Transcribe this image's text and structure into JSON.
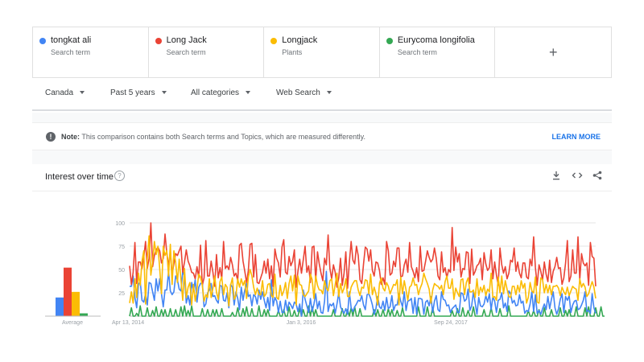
{
  "terms": [
    {
      "name": "tongkat ali",
      "type": "Search term",
      "color": "#4285f4"
    },
    {
      "name": "Long Jack",
      "type": "Search term",
      "color": "#ea4335"
    },
    {
      "name": "Longjack",
      "type": "Plants",
      "color": "#fbbc04"
    },
    {
      "name": "Eurycoma longifolia",
      "type": "Search term",
      "color": "#34a853"
    }
  ],
  "add_label": "+",
  "filters": {
    "region": "Canada",
    "time": "Past 5 years",
    "category": "All categories",
    "property": "Web Search"
  },
  "note": {
    "label": "Note:",
    "text": "This comparison contains both Search terms and Topics, which are measured differently.",
    "action": "LEARN MORE"
  },
  "card": {
    "title": "Interest over time",
    "help": "?",
    "tools": [
      "download-icon",
      "embed-icon",
      "share-icon"
    ]
  },
  "chart_data": {
    "type": "line",
    "ylim": [
      0,
      100
    ],
    "yticks": [
      25,
      50,
      75,
      100
    ],
    "xtick_labels": [
      "Apr 13, 2014",
      "Jan 3, 2016",
      "Sep 24, 2017"
    ],
    "averages": {
      "label": "Average",
      "values": [
        {
          "name": "tongkat ali",
          "value": 20
        },
        {
          "name": "Long Jack",
          "value": 52
        },
        {
          "name": "Longjack",
          "value": 26
        },
        {
          "name": "Eurycoma longifolia",
          "value": 3
        }
      ]
    },
    "series": [
      {
        "name": "tongkat ali",
        "values": [
          32,
          32,
          43,
          20,
          9,
          34,
          37,
          17,
          15,
          24,
          12,
          36,
          35,
          26,
          17,
          40,
          27,
          40,
          24,
          10,
          28,
          28,
          48,
          27,
          23,
          26,
          43,
          39,
          29,
          27,
          48,
          43,
          14,
          22,
          12,
          36,
          27,
          39,
          15,
          31,
          35,
          36,
          10,
          13,
          25,
          28,
          35,
          21,
          22,
          17,
          14,
          33,
          32,
          17,
          16,
          25,
          9,
          34,
          31,
          12,
          26,
          19,
          7,
          31,
          17,
          28,
          35,
          21,
          23,
          11,
          23,
          21,
          13,
          28,
          18,
          26,
          17,
          9,
          20,
          6,
          39,
          11,
          20,
          16,
          4,
          16,
          4,
          4,
          17,
          6,
          15,
          12,
          8,
          15,
          13,
          5,
          13,
          0,
          28,
          18,
          11,
          4,
          19,
          5,
          13,
          24,
          8,
          16,
          4,
          3,
          16,
          48,
          5,
          13,
          11,
          14,
          3,
          13,
          25,
          10,
          6,
          3,
          8,
          2,
          26,
          9,
          5,
          10,
          13,
          17,
          16,
          22,
          12,
          7,
          23,
          24,
          19,
          12,
          2,
          8,
          21,
          10,
          8,
          16,
          6,
          20,
          8,
          10,
          22,
          6,
          12,
          12,
          24,
          16,
          10,
          26,
          6,
          16,
          17,
          19,
          3,
          20,
          2,
          19,
          19,
          18,
          2,
          15,
          17,
          11,
          21,
          4,
          16,
          22,
          7,
          5,
          26,
          18,
          17,
          11,
          12,
          4,
          8,
          10,
          12,
          4,
          4,
          25,
          24,
          16,
          18,
          29,
          6,
          11,
          26,
          14,
          2,
          20,
          11,
          10,
          13,
          22,
          15,
          24,
          7,
          21,
          16,
          4,
          17,
          18,
          25,
          9,
          14,
          5,
          27,
          24,
          14,
          17,
          11,
          12,
          23,
          14,
          16,
          3,
          6,
          5,
          13,
          26,
          5,
          23,
          3,
          6,
          2,
          8,
          13,
          7,
          21,
          8,
          18,
          26,
          9,
          2,
          8,
          18,
          24,
          4,
          21,
          17,
          22,
          4,
          12,
          16,
          17,
          7,
          8,
          12,
          17,
          26,
          5,
          6,
          3,
          24,
          9,
          3
        ]
      },
      {
        "name": "Long Jack",
        "values": [
          54,
          34,
          47,
          79,
          35,
          58,
          58,
          51,
          63,
          80,
          51,
          62,
          100,
          53,
          65,
          71,
          74,
          70,
          57,
          62,
          88,
          68,
          54,
          69,
          45,
          56,
          67,
          65,
          70,
          75,
          47,
          58,
          71,
          59,
          54,
          47,
          46,
          40,
          53,
          41,
          76,
          33,
          41,
          81,
          43,
          43,
          59,
          47,
          32,
          66,
          41,
          52,
          40,
          80,
          51,
          54,
          50,
          63,
          55,
          43,
          46,
          38,
          76,
          78,
          59,
          48,
          36,
          49,
          77,
          78,
          42,
          66,
          36,
          35,
          41,
          47,
          59,
          46,
          61,
          40,
          54,
          32,
          72,
          62,
          57,
          42,
          74,
          82,
          47,
          45,
          64,
          54,
          59,
          71,
          31,
          48,
          61,
          46,
          60,
          75,
          47,
          54,
          36,
          74,
          75,
          38,
          69,
          56,
          46,
          38,
          62,
          55,
          87,
          51,
          40,
          55,
          47,
          31,
          41,
          62,
          33,
          46,
          69,
          30,
          58,
          80,
          60,
          56,
          75,
          65,
          39,
          35,
          56,
          74,
          72,
          59,
          71,
          49,
          43,
          58,
          57,
          49,
          34,
          41,
          34,
          80,
          70,
          44,
          46,
          59,
          53,
          73,
          73,
          42,
          43,
          55,
          61,
          47,
          79,
          53,
          48,
          41,
          52,
          37,
          75,
          48,
          49,
          59,
          70,
          63,
          58,
          61,
          73,
          62,
          43,
          39,
          69,
          47,
          52,
          41,
          50,
          47,
          95,
          49,
          74,
          58,
          67,
          42,
          51,
          50,
          69,
          68,
          35,
          72,
          44,
          48,
          54,
          56,
          62,
          39,
          68,
          56,
          49,
          52,
          71,
          40,
          58,
          44,
          33,
          73,
          55,
          46,
          53,
          40,
          46,
          60,
          58,
          73,
          48,
          58,
          46,
          41,
          57,
          57,
          42,
          40,
          61,
          54,
          85,
          52,
          33,
          55,
          48,
          39,
          58,
          45,
          37,
          60,
          36,
          48,
          53,
          63,
          51,
          52,
          34,
          41,
          57,
          81,
          37,
          43,
          71,
          46,
          46,
          85,
          39,
          67,
          57,
          54,
          57,
          33,
          79,
          64,
          62,
          32
        ]
      },
      {
        "name": "Longjack",
        "values": [
          14,
          26,
          14,
          40,
          20,
          46,
          33,
          59,
          70,
          13,
          63,
          86,
          44,
          59,
          80,
          66,
          75,
          51,
          24,
          75,
          65,
          70,
          43,
          77,
          34,
          70,
          58,
          36,
          61,
          39,
          17,
          51,
          20,
          31,
          36,
          12,
          34,
          16,
          29,
          45,
          42,
          33,
          16,
          23,
          20,
          40,
          20,
          30,
          43,
          26,
          18,
          37,
          42,
          23,
          34,
          31,
          11,
          33,
          41,
          18,
          22,
          40,
          31,
          40,
          33,
          38,
          19,
          42,
          50,
          43,
          31,
          23,
          30,
          23,
          23,
          38,
          21,
          24,
          34,
          35,
          22,
          20,
          45,
          20,
          18,
          33,
          22,
          27,
          36,
          19,
          35,
          43,
          27,
          44,
          12,
          43,
          34,
          33,
          23,
          21,
          24,
          27,
          45,
          39,
          19,
          43,
          33,
          28,
          28,
          24,
          38,
          30,
          27,
          38,
          40,
          22,
          34,
          46,
          21,
          35,
          25,
          30,
          40,
          21,
          21,
          31,
          35,
          38,
          38,
          28,
          22,
          31,
          30,
          39,
          38,
          24,
          45,
          23,
          31,
          24,
          12,
          35,
          41,
          30,
          27,
          36,
          32,
          24,
          29,
          34,
          33,
          39,
          12,
          42,
          24,
          38,
          28,
          17,
          31,
          33,
          41,
          33,
          34,
          23,
          30,
          35,
          46,
          40,
          35,
          29,
          14,
          28,
          35,
          33,
          32,
          29,
          33,
          23,
          37,
          43,
          30,
          30,
          40,
          18,
          30,
          25,
          21,
          39,
          40,
          23,
          36,
          41,
          26,
          26,
          28,
          20,
          40,
          22,
          31,
          26,
          33,
          22,
          29,
          26,
          46,
          20,
          21,
          17,
          42,
          25,
          43,
          24,
          38,
          29,
          21,
          20,
          32,
          32,
          23,
          33,
          26,
          38,
          30,
          35,
          14,
          20,
          36,
          27,
          25,
          42,
          15,
          14,
          41,
          39,
          25,
          34,
          25,
          33,
          23,
          32,
          32,
          33,
          30,
          22,
          31,
          26,
          23,
          31,
          22,
          27,
          32,
          30,
          29,
          17,
          40,
          31,
          35,
          31,
          21,
          24,
          31,
          37,
          31,
          19
        ]
      },
      {
        "name": "Eurycoma longifolia",
        "values": [
          0,
          9,
          0,
          0,
          3,
          0,
          11,
          0,
          0,
          0,
          9,
          0,
          0,
          6,
          0,
          10,
          0,
          0,
          7,
          0,
          7,
          0,
          0,
          8,
          0,
          0,
          7,
          0,
          0,
          10,
          0,
          11,
          0,
          6,
          0,
          11,
          0,
          0,
          0,
          0,
          0,
          8,
          0,
          0,
          7,
          0,
          0,
          7,
          0,
          7,
          0,
          0,
          8,
          0,
          0,
          0,
          0,
          0,
          4,
          0,
          0,
          9,
          0,
          0,
          8,
          0,
          10,
          0,
          0,
          8,
          0,
          0,
          0,
          11,
          0,
          0,
          7,
          0,
          7,
          0,
          0,
          0,
          0,
          0,
          6,
          0,
          0,
          7,
          0,
          0,
          10,
          0,
          0,
          6,
          0,
          0,
          8,
          0,
          7,
          0,
          0,
          11,
          0,
          10,
          0,
          7,
          0,
          0,
          0,
          0,
          0,
          0,
          0,
          0,
          0,
          7,
          0,
          0,
          0,
          0,
          8,
          0,
          0,
          7,
          0,
          9,
          0,
          10,
          0,
          0,
          8,
          0,
          0,
          0,
          0,
          0,
          0,
          0,
          7,
          0,
          7,
          0,
          0,
          7,
          0,
          0,
          8,
          0,
          7,
          0,
          0,
          6,
          0,
          0,
          9,
          0,
          0,
          0,
          0,
          0,
          0,
          0,
          0,
          10,
          0,
          0,
          0,
          0,
          10,
          0,
          0,
          9,
          0,
          0,
          0,
          0,
          0,
          0,
          0,
          0,
          0,
          0,
          6,
          0,
          0,
          8,
          0,
          0,
          9,
          0,
          0,
          6,
          0,
          0,
          10,
          0,
          0,
          0,
          0,
          0,
          7,
          0,
          0,
          0,
          9,
          0,
          0,
          0,
          0,
          8,
          0,
          0,
          0,
          0,
          11,
          0,
          0,
          0,
          0,
          0,
          0,
          0,
          0,
          0,
          0,
          6,
          0,
          0,
          6,
          0,
          0,
          7,
          0,
          0,
          9,
          0,
          0,
          0,
          7,
          0,
          0,
          0,
          0,
          9,
          0,
          0,
          6,
          0,
          7,
          0,
          0,
          0,
          10,
          0,
          0,
          0,
          0,
          9,
          0,
          10,
          0,
          0,
          0,
          9,
          0,
          0,
          10,
          0,
          0
        ]
      }
    ]
  }
}
